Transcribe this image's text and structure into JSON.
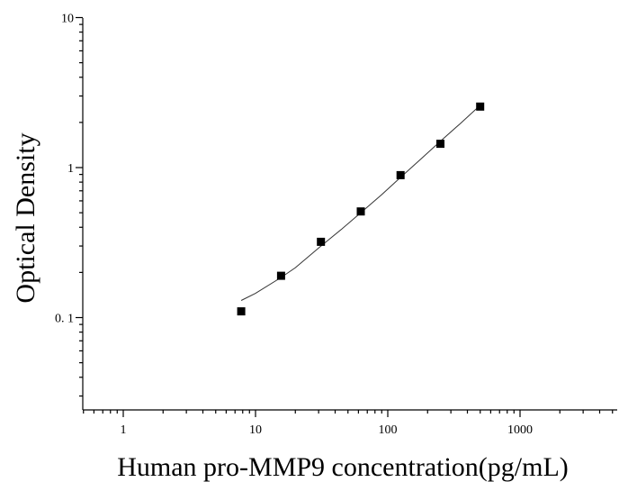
{
  "chart_data": {
    "type": "scatter",
    "xlabel": "Human pro-MMP9 concentration(pg/mL)",
    "ylabel": "Optical Density",
    "xscale": "log",
    "yscale": "log",
    "xlim": [
      0.5,
      5000
    ],
    "ylim": [
      0.025,
      10
    ],
    "x_ticks": [
      1,
      10,
      100,
      1000
    ],
    "x_tick_labels": [
      "1",
      "10",
      "100",
      "1000"
    ],
    "y_ticks": [
      0.1,
      1,
      10
    ],
    "y_tick_labels": [
      "0. 1",
      "1",
      "10"
    ],
    "grid": false,
    "legend": "none",
    "series": [
      {
        "marker": "square",
        "x": [
          7.8,
          15.6,
          31.25,
          62.5,
          125,
          250,
          500
        ],
        "y": [
          0.11,
          0.19,
          0.32,
          0.51,
          0.89,
          1.44,
          2.55
        ]
      }
    ],
    "fit_curve": {
      "x": [
        7.8,
        10,
        15.6,
        20,
        31.25,
        45,
        62.5,
        90,
        125,
        180,
        250,
        350,
        500
      ],
      "y": [
        0.13,
        0.145,
        0.185,
        0.215,
        0.3,
        0.39,
        0.5,
        0.66,
        0.86,
        1.15,
        1.5,
        1.95,
        2.6
      ]
    }
  }
}
